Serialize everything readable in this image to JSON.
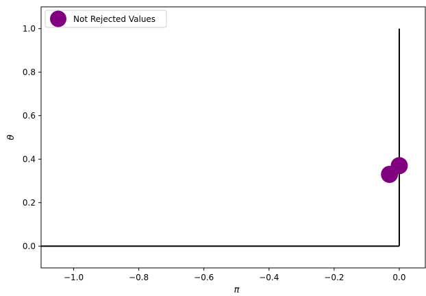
{
  "chart_data": {
    "type": "scatter",
    "xlabel": "π",
    "ylabel": "θ",
    "xlim": [
      -1.1,
      0.08
    ],
    "ylim": [
      -0.1,
      1.1
    ],
    "grid": false,
    "legend_position": "top-left",
    "x_ticks": [
      {
        "value": -1.0,
        "label": "−1.0"
      },
      {
        "value": -0.8,
        "label": "−0.8"
      },
      {
        "value": -0.6,
        "label": "−0.6"
      },
      {
        "value": -0.4,
        "label": "−0.4"
      },
      {
        "value": -0.2,
        "label": "−0.2"
      },
      {
        "value": 0.0,
        "label": "0.0"
      }
    ],
    "y_ticks": [
      {
        "value": 0.0,
        "label": "0.0"
      },
      {
        "value": 0.2,
        "label": "0.2"
      },
      {
        "value": 0.4,
        "label": "0.4"
      },
      {
        "value": 0.6,
        "label": "0.6"
      },
      {
        "value": 0.8,
        "label": "0.8"
      },
      {
        "value": 1.0,
        "label": "1.0"
      }
    ],
    "lines": [
      {
        "x": [
          -1.1,
          0.0
        ],
        "y": [
          0.0,
          0.0
        ],
        "color": "#000000"
      },
      {
        "x": [
          0.0,
          0.0
        ],
        "y": [
          0.0,
          1.0
        ],
        "color": "#000000"
      }
    ],
    "series": [
      {
        "name": "Not Rejected Values",
        "color": "#800080",
        "points": [
          {
            "x": -0.03,
            "y": 0.33
          },
          {
            "x": 0.0,
            "y": 0.37
          }
        ]
      }
    ]
  }
}
